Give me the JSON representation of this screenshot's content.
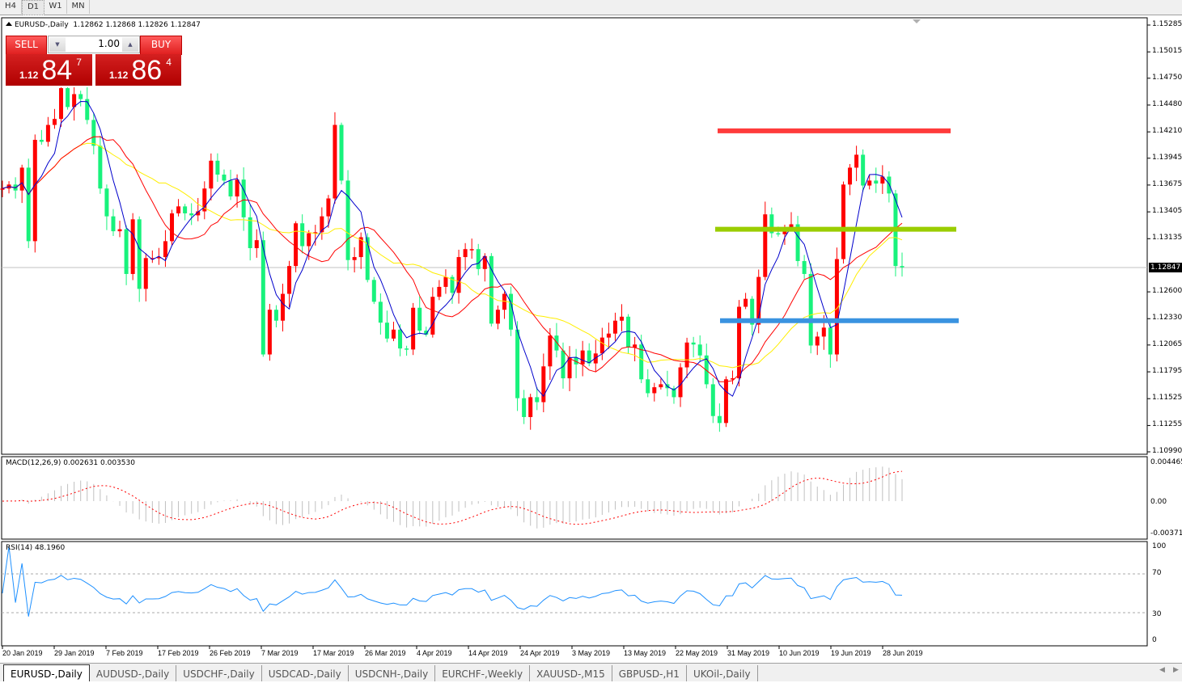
{
  "toolbar": {
    "timeframes": [
      "H4",
      "D1",
      "W1",
      "MN"
    ],
    "active": "D1"
  },
  "header": {
    "symbol": "EURUSD-,Daily",
    "ohlc": "1.12862 1.12868 1.12826 1.12847"
  },
  "trade_panel": {
    "sell_label": "SELL",
    "buy_label": "BUY",
    "lot": "1.00",
    "sell_price": {
      "prefix": "1.12",
      "big": "84",
      "sup": "7"
    },
    "buy_price": {
      "prefix": "1.12",
      "big": "86",
      "sup": "4"
    }
  },
  "price_axis": [
    "1.15285",
    "1.15015",
    "1.14750",
    "1.14480",
    "1.14210",
    "1.13945",
    "1.13675",
    "1.13405",
    "1.13135",
    "1.12600",
    "1.12330",
    "1.12065",
    "1.11795",
    "1.11525",
    "1.11255",
    "1.10990"
  ],
  "current_price": "1.12847",
  "dates": [
    "20 Jan 2019",
    "29 Jan 2019",
    "7 Feb 2019",
    "17 Feb 2019",
    "26 Feb 2019",
    "7 Mar 2019",
    "17 Mar 2019",
    "26 Mar 2019",
    "4 Apr 2019",
    "14 Apr 2019",
    "24 Apr 2019",
    "3 May 2019",
    "13 May 2019",
    "22 May 2019",
    "31 May 2019",
    "10 Jun 2019",
    "19 Jun 2019",
    "28 Jun 2019"
  ],
  "macd": {
    "label": "MACD(12,26,9) 0.002631 0.003530",
    "axis": [
      "0.004465",
      "0.00",
      "-0.003715"
    ]
  },
  "rsi": {
    "label": "RSI(14) 48.1960",
    "axis": [
      "100",
      "70",
      "30",
      "0"
    ]
  },
  "tabs": [
    "EURUSD-,Daily",
    "AUDUSD-,Daily",
    "USDCHF-,Daily",
    "USDCAD-,Daily",
    "USDCNH-,Daily",
    "EURCHF-,Weekly",
    "XAUUSD-,M15",
    "GBPUSD-,H1",
    "UKOil-,Daily"
  ],
  "active_tab": "EURUSD-,Daily",
  "chart_data": {
    "type": "candlestick",
    "symbol": "EURUSD-",
    "timeframe": "Daily",
    "ylim": [
      1.1099,
      1.15285
    ],
    "close": [
      1.1364,
      1.1368,
      1.1362,
      1.1385,
      1.1311,
      1.1413,
      1.1411,
      1.1428,
      1.1434,
      1.1465,
      1.1446,
      1.1459,
      1.1454,
      1.1433,
      1.1407,
      1.1364,
      1.1336,
      1.1321,
      1.1323,
      1.1278,
      1.1333,
      1.1263,
      1.1294,
      1.1294,
      1.1295,
      1.1311,
      1.1339,
      1.1346,
      1.1339,
      1.1337,
      1.1341,
      1.1364,
      1.1392,
      1.1378,
      1.1372,
      1.1356,
      1.1373,
      1.1335,
      1.1304,
      1.1312,
      1.1197,
      1.1242,
      1.1231,
      1.1258,
      1.1286,
      1.1329,
      1.1306,
      1.1319,
      1.132,
      1.1336,
      1.1354,
      1.1428,
      1.1372,
      1.1292,
      1.1295,
      1.1315,
      1.1272,
      1.125,
      1.1229,
      1.1213,
      1.1222,
      1.1203,
      1.1202,
      1.1244,
      1.1221,
      1.1217,
      1.1255,
      1.1265,
      1.1275,
      1.1259,
      1.1295,
      1.1303,
      1.1303,
      1.1283,
      1.1296,
      1.1228,
      1.1242,
      1.1258,
      1.1222,
      1.1153,
      1.1134,
      1.1154,
      1.1149,
      1.1185,
      1.1216,
      1.1201,
      1.1173,
      1.1194,
      1.1187,
      1.1201,
      1.1188,
      1.1198,
      1.1214,
      1.1218,
      1.1231,
      1.1235,
      1.1204,
      1.1207,
      1.1172,
      1.1158,
      1.1164,
      1.1167,
      1.1163,
      1.1154,
      1.1184,
      1.1209,
      1.1207,
      1.1196,
      1.1167,
      1.1135,
      1.1128,
      1.1172,
      1.1173,
      1.1245,
      1.1253,
      1.1227,
      1.1275,
      1.1338,
      1.1319,
      1.1318,
      1.1324,
      1.1328,
      1.1291,
      1.1278,
      1.1206,
      1.1215,
      1.1224,
      1.1197,
      1.1293,
      1.1368,
      1.1385,
      1.1398,
      1.1367,
      1.1372,
      1.1369,
      1.1376,
      1.1359,
      1.1286,
      1.12847
    ],
    "levels": [
      {
        "price": 1.1422,
        "color": "#ff3b3b"
      },
      {
        "price": 1.1323,
        "color": "#9acd00"
      },
      {
        "price": 1.1231,
        "color": "#3a93e0"
      }
    ],
    "colors": {
      "bull": "#ff0000",
      "bear": "#18f27c",
      "ma_fast": "#0000cc",
      "ma_mid": "#ff0000",
      "ma_slow": "#ffee00",
      "macd_hist": "#c0c0c0",
      "macd_signal": "#ff0000",
      "rsi": "#1e90ff"
    }
  }
}
